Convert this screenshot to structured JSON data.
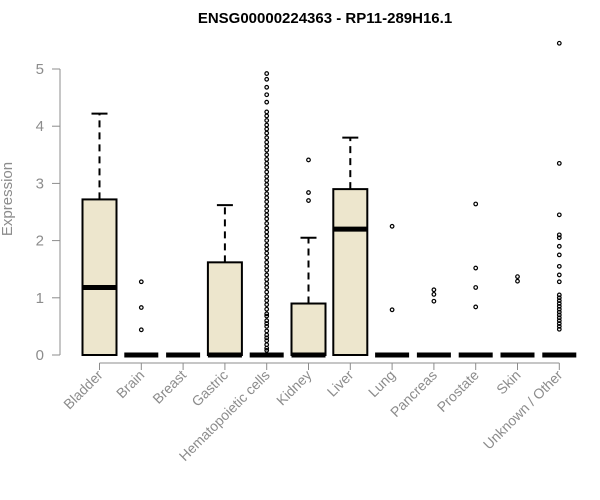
{
  "chart_data": {
    "type": "boxplot",
    "title": "ENSG00000224363 - RP11-289H16.1",
    "ylabel": "Expression",
    "xlabel": "",
    "ylim": [
      0,
      5.5
    ],
    "yticks": [
      "0",
      "1",
      "2",
      "3",
      "4",
      "5"
    ],
    "grid": false,
    "colors": {
      "box_fill": "#ede6cd",
      "stroke": "#000000",
      "axis": "#8c8c8c"
    },
    "categories": [
      "Bladder",
      "Brain",
      "Breast",
      "Gastric",
      "Hematopoietic cells",
      "Kidney",
      "Liver",
      "Lung",
      "Pancreas",
      "Prostate",
      "Skin",
      "Unknown / Other"
    ],
    "boxes": [
      {
        "category": "Bladder",
        "q1": 0,
        "median": 1.18,
        "q3": 2.72,
        "whisker_low": 0,
        "whisker_high": 4.22,
        "outliers": []
      },
      {
        "category": "Brain",
        "q1": 0,
        "median": 0,
        "q3": 0,
        "whisker_low": 0,
        "whisker_high": 0,
        "outliers": [
          0.44,
          0.83,
          1.28
        ]
      },
      {
        "category": "Breast",
        "q1": 0,
        "median": 0,
        "q3": 0,
        "whisker_low": 0,
        "whisker_high": 0,
        "outliers": []
      },
      {
        "category": "Gastric",
        "q1": 0,
        "median": 0,
        "q3": 1.62,
        "whisker_low": 0,
        "whisker_high": 2.62,
        "outliers": []
      },
      {
        "category": "Hematopoietic cells",
        "q1": 0,
        "median": 0,
        "q3": 0,
        "whisker_low": 0,
        "whisker_high": 0,
        "outliers": [
          0.08,
          0.12,
          0.18,
          0.25,
          0.3,
          0.35,
          0.42,
          0.5,
          0.55,
          0.6,
          0.68,
          0.72,
          0.8,
          0.88,
          0.95,
          1.02,
          1.1,
          1.18,
          1.25,
          1.32,
          1.4,
          1.48,
          1.55,
          1.62,
          1.7,
          1.78,
          1.85,
          1.92,
          2.0,
          2.08,
          2.15,
          2.22,
          2.3,
          2.38,
          2.45,
          2.52,
          2.6,
          2.68,
          2.75,
          2.82,
          2.9,
          2.98,
          3.05,
          3.12,
          3.2,
          3.28,
          3.35,
          3.42,
          3.5,
          3.58,
          3.65,
          3.72,
          3.8,
          3.88,
          3.95,
          4.02,
          4.1,
          4.18,
          4.25,
          4.42,
          4.55,
          4.68,
          4.82,
          4.92
        ]
      },
      {
        "category": "Kidney",
        "q1": 0,
        "median": 0,
        "q3": 0.9,
        "whisker_low": 0,
        "whisker_high": 2.05,
        "outliers": [
          2.7,
          2.84,
          3.41
        ]
      },
      {
        "category": "Liver",
        "q1": 0,
        "median": 2.2,
        "q3": 2.9,
        "whisker_low": 0,
        "whisker_high": 3.8,
        "outliers": []
      },
      {
        "category": "Lung",
        "q1": 0,
        "median": 0,
        "q3": 0,
        "whisker_low": 0,
        "whisker_high": 0,
        "outliers": [
          0.79,
          2.25
        ]
      },
      {
        "category": "Pancreas",
        "q1": 0,
        "median": 0,
        "q3": 0,
        "whisker_low": 0,
        "whisker_high": 0,
        "outliers": [
          0.94,
          1.06,
          1.14
        ]
      },
      {
        "category": "Prostate",
        "q1": 0,
        "median": 0,
        "q3": 0,
        "whisker_low": 0,
        "whisker_high": 0,
        "outliers": [
          0.84,
          1.18,
          1.52,
          2.64
        ]
      },
      {
        "category": "Skin",
        "q1": 0,
        "median": 0,
        "q3": 0,
        "whisker_low": 0,
        "whisker_high": 0,
        "outliers": [
          1.29,
          1.37
        ]
      },
      {
        "category": "Unknown / Other",
        "q1": 0,
        "median": 0,
        "q3": 0,
        "whisker_low": 0,
        "whisker_high": 0,
        "outliers": [
          0.45,
          0.5,
          0.55,
          0.6,
          0.65,
          0.7,
          0.75,
          0.8,
          0.85,
          0.9,
          0.95,
          1.0,
          1.05,
          1.28,
          1.4,
          1.55,
          1.75,
          1.9,
          2.05,
          2.1,
          2.45,
          3.35,
          5.45
        ]
      }
    ]
  }
}
